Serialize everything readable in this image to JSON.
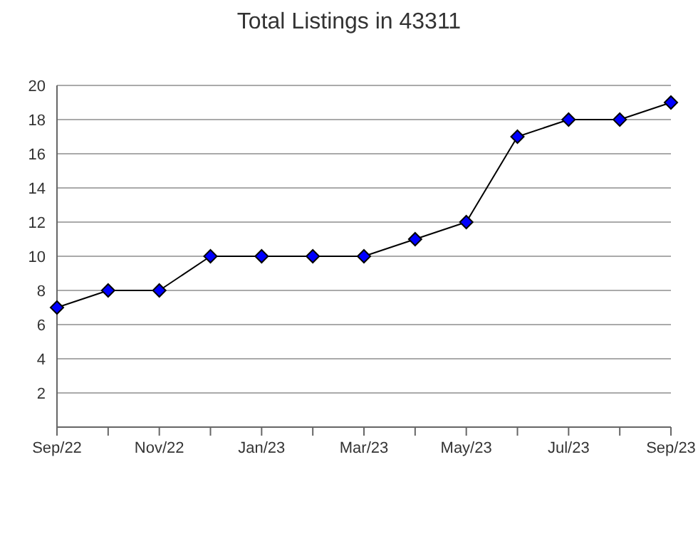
{
  "chart_data": {
    "type": "line",
    "title": "Total Listings in 43311",
    "categories": [
      "Sep/22",
      null,
      "Nov/22",
      null,
      "Jan/23",
      null,
      "Mar/23",
      null,
      "May/23",
      null,
      "Jul/23",
      null,
      "Sep/23"
    ],
    "series": [
      {
        "color": "#0000ff",
        "values": [
          7,
          8,
          8,
          10,
          10,
          10,
          10,
          11,
          12,
          17,
          18,
          18,
          19
        ]
      }
    ],
    "ylim": [
      0,
      20
    ],
    "yticks": [
      {
        "value": 0,
        "label": null
      },
      2,
      4,
      6,
      8,
      10,
      12,
      14,
      16,
      18,
      20
    ],
    "grid": "y",
    "marker": "diamond",
    "line_style": "solid"
  }
}
